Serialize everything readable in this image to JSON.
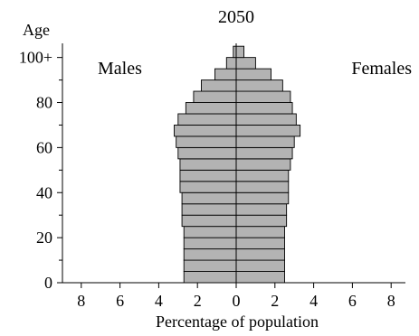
{
  "chart_data": {
    "type": "bar",
    "orientation": "horizontal",
    "subtype": "population-pyramid",
    "title": "2050",
    "xlabel": "Percentage of population",
    "ylabel": "Age",
    "side_labels": {
      "left": "Males",
      "right": "Females"
    },
    "x_tick_labels": [
      "8",
      "6",
      "4",
      "2",
      "0",
      "2",
      "4",
      "6",
      "8"
    ],
    "y_tick_labels": [
      "0",
      "20",
      "40",
      "60",
      "80",
      "100+"
    ],
    "y_tick_values": [
      0,
      20,
      40,
      60,
      80,
      100
    ],
    "xlim": [
      -8,
      8
    ],
    "ylim": [
      0,
      105
    ],
    "age_group_width": 5,
    "age_group_starts": [
      0,
      5,
      10,
      15,
      20,
      25,
      30,
      35,
      40,
      45,
      50,
      55,
      60,
      65,
      70,
      75,
      80,
      85,
      90,
      95,
      100
    ],
    "series": [
      {
        "name": "Males",
        "values": [
          2.7,
          2.7,
          2.7,
          2.7,
          2.7,
          2.8,
          2.8,
          2.8,
          2.9,
          2.9,
          2.9,
          3.0,
          3.1,
          3.2,
          3.0,
          2.6,
          2.2,
          1.8,
          1.1,
          0.5,
          0.15
        ]
      },
      {
        "name": "Females",
        "values": [
          2.5,
          2.5,
          2.5,
          2.5,
          2.5,
          2.6,
          2.6,
          2.7,
          2.7,
          2.7,
          2.8,
          2.9,
          3.0,
          3.3,
          3.1,
          2.9,
          2.8,
          2.4,
          1.8,
          1.0,
          0.4
        ]
      }
    ],
    "grid": false,
    "legend": "none"
  }
}
